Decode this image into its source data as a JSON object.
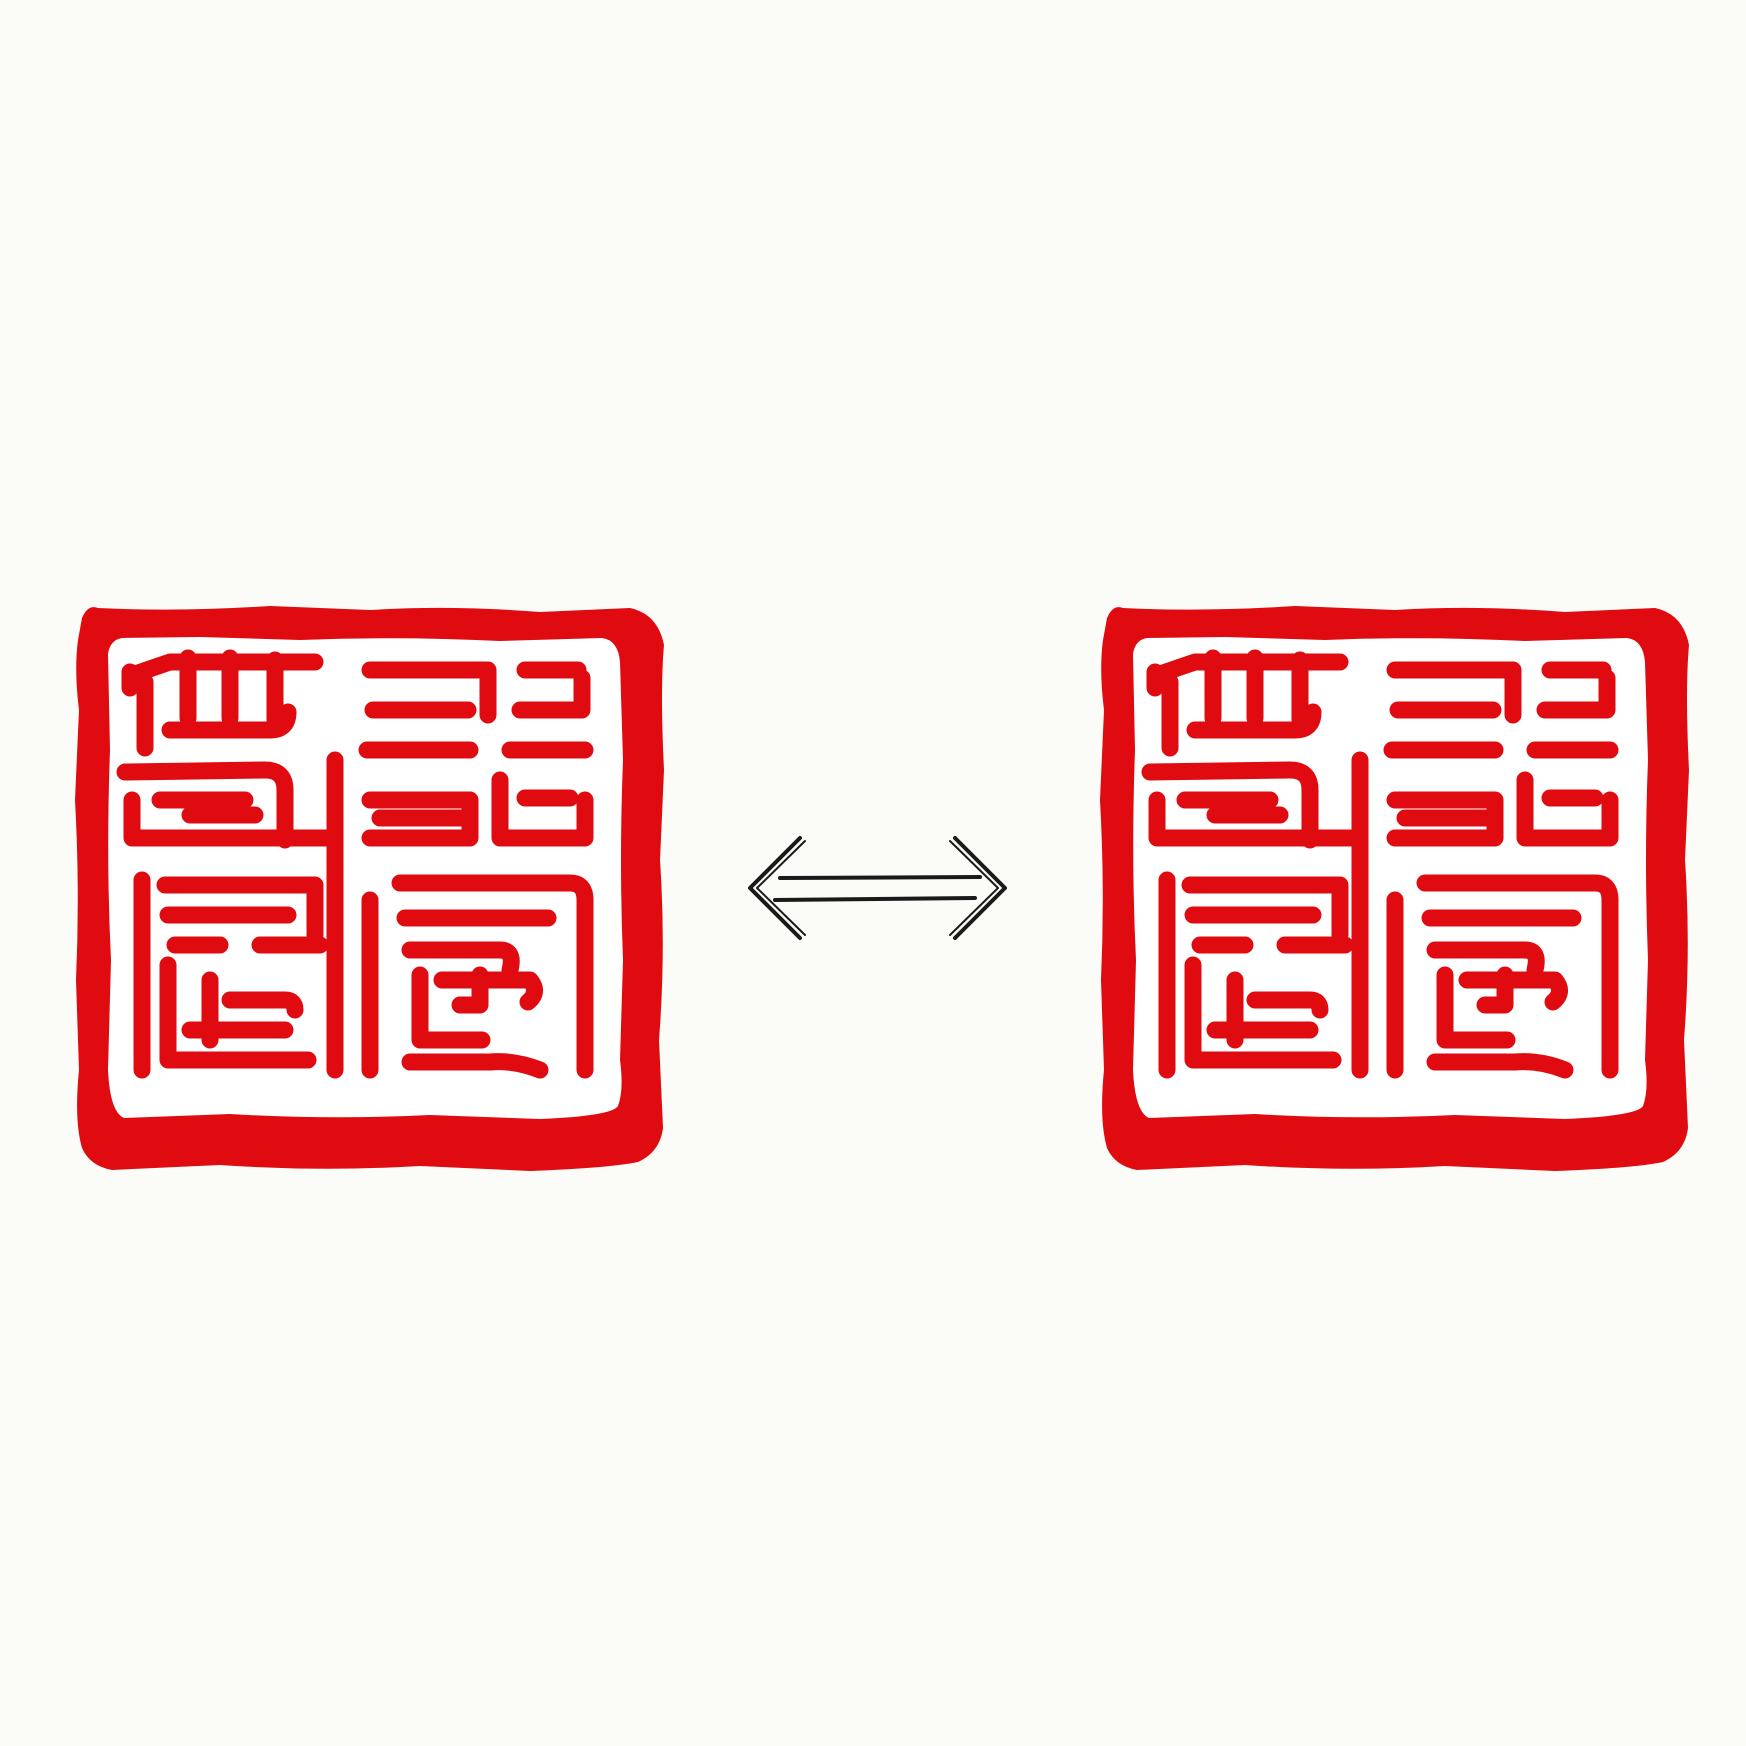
{
  "colors": {
    "background": "#fbfbf8",
    "seal_red": "#e00b10",
    "seal_inner": "#ffffff",
    "arrow": "#1a1a1a"
  },
  "seals": [
    {
      "icon": "seal-stamp-icon",
      "position": "left"
    },
    {
      "icon": "seal-stamp-icon",
      "position": "right"
    }
  ],
  "arrow": {
    "icon": "double-arrow-icon",
    "direction": "bidirectional"
  }
}
